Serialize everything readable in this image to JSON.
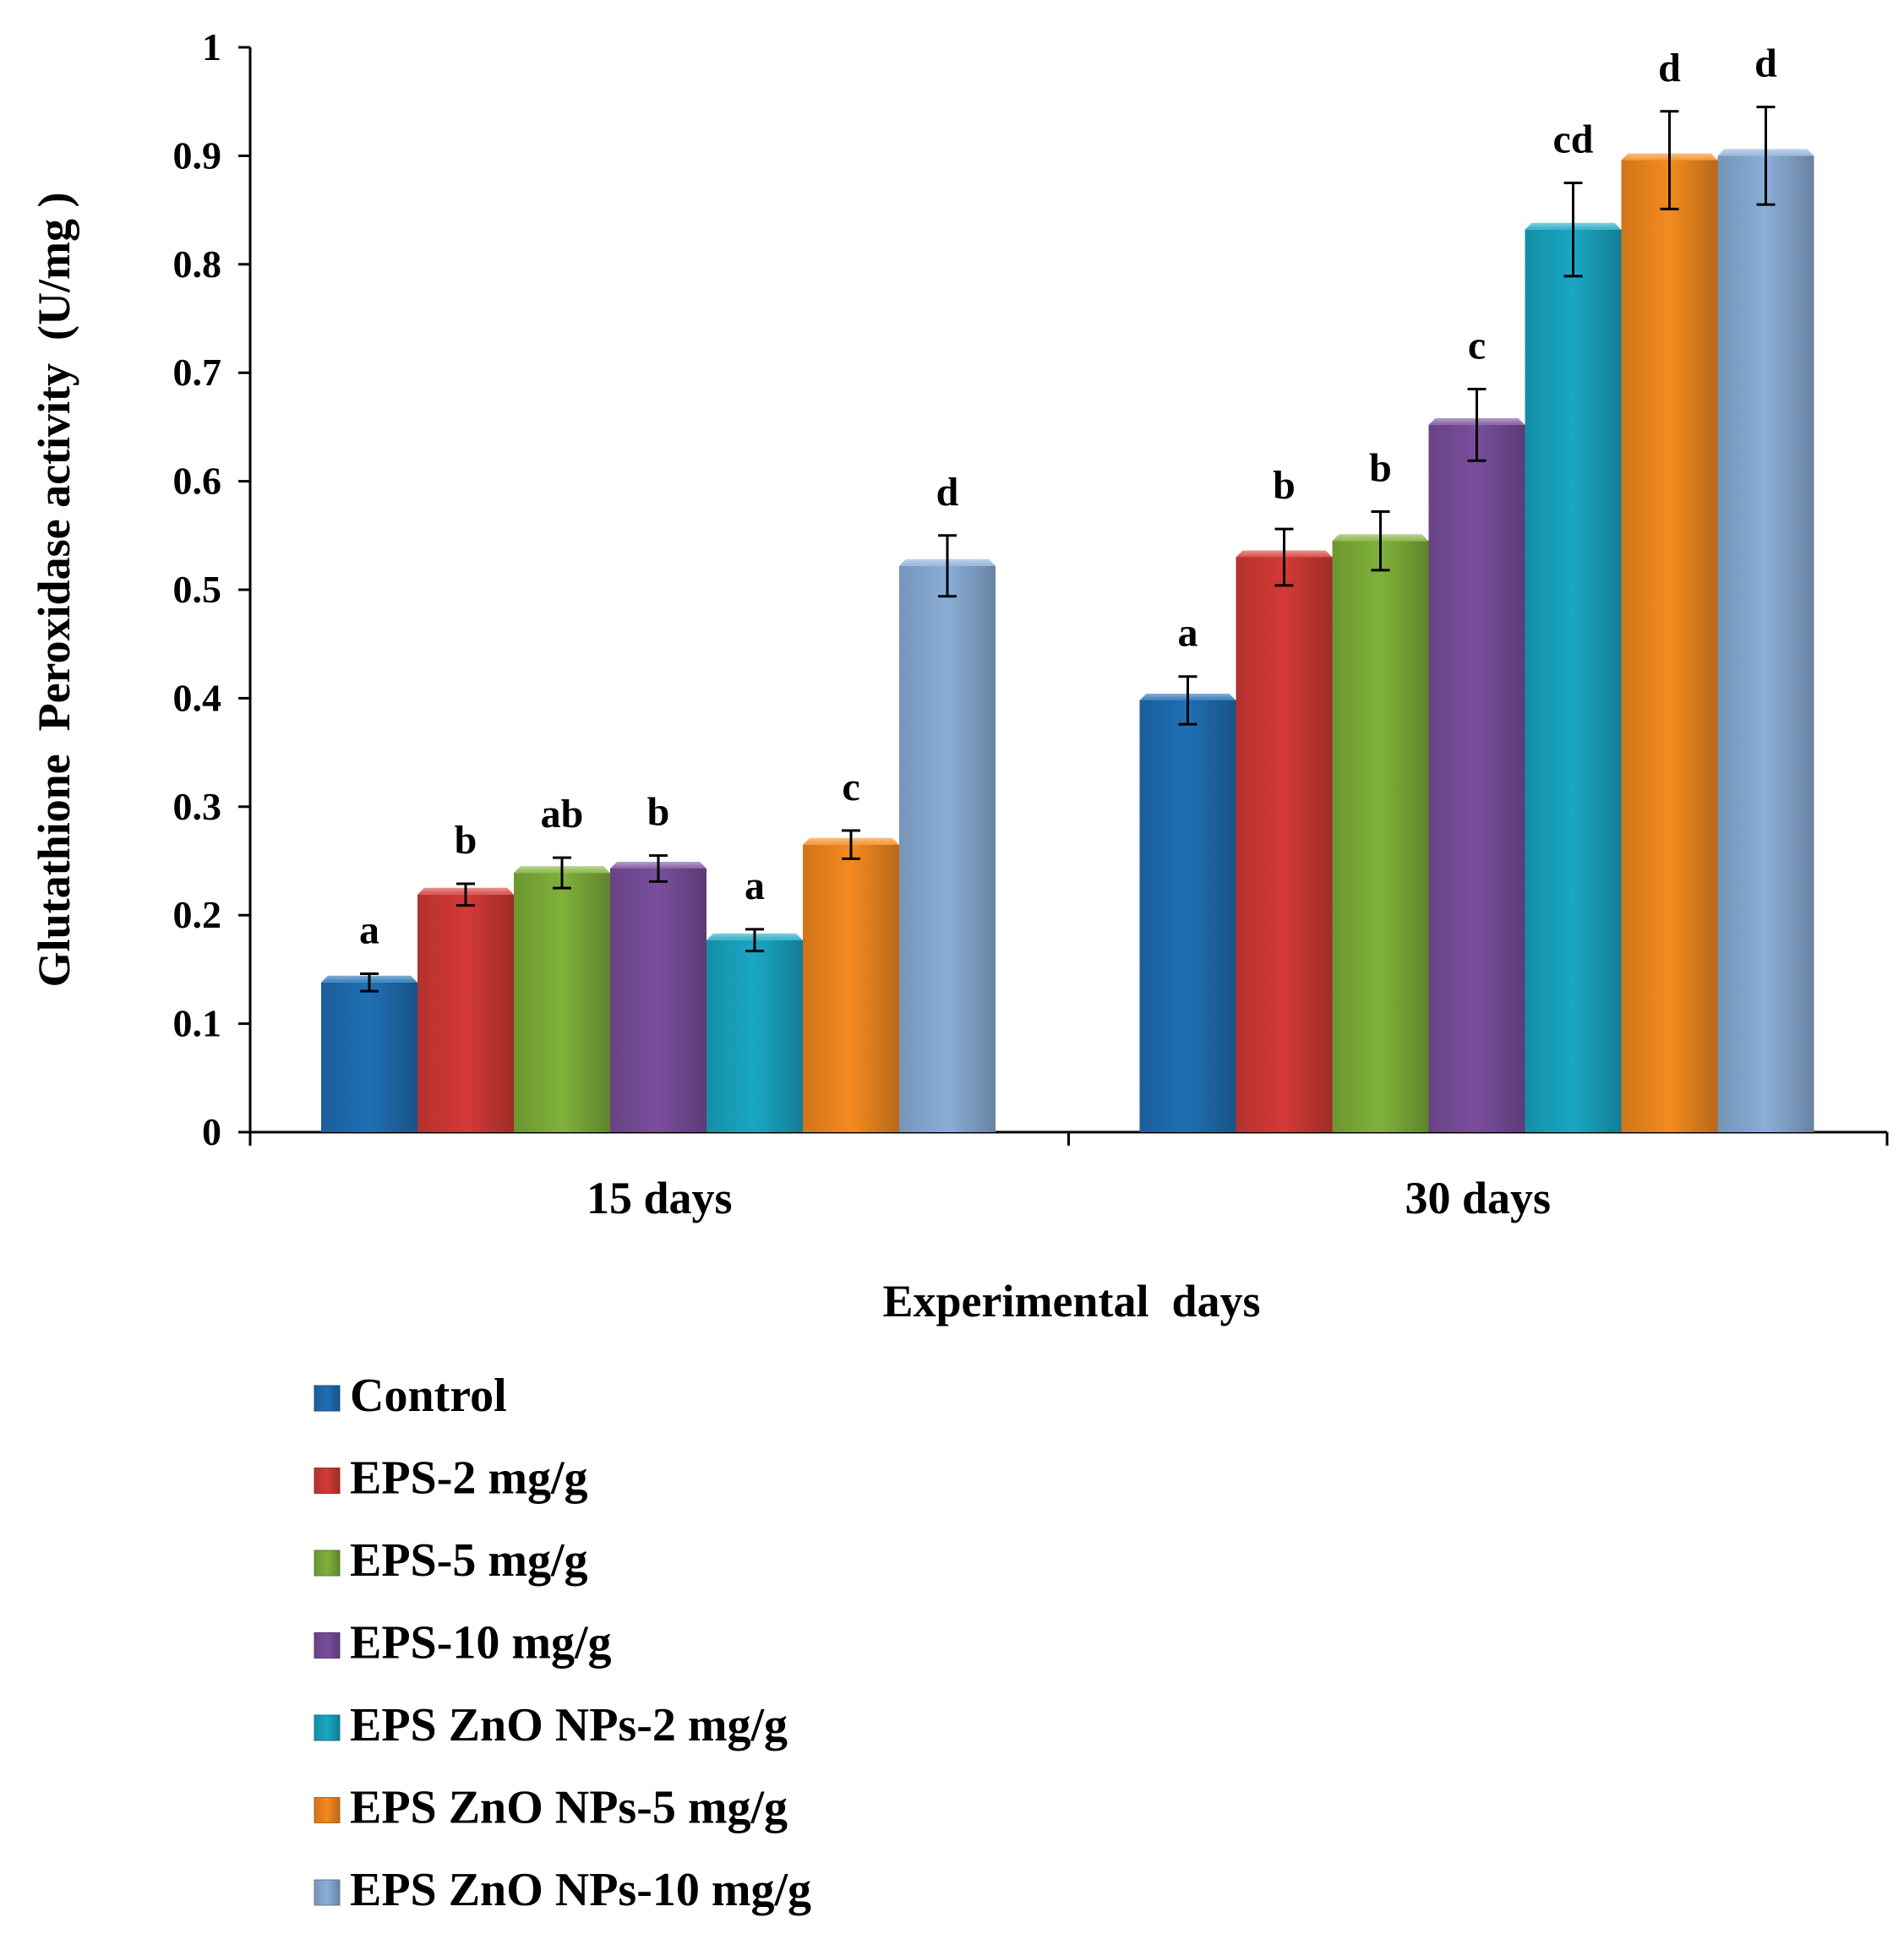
{
  "chart_data": {
    "type": "bar",
    "title": "",
    "xlabel": "Experimental  days",
    "ylabel": "Glutathione  Peroxidase activity  (U/mg )",
    "ylim": [
      0,
      1
    ],
    "yticks": [
      "0",
      "0.1",
      "0.2",
      "0.3",
      "0.4",
      "0.5",
      "0.6",
      "0.7",
      "0.8",
      "0.9",
      "1"
    ],
    "categories": [
      "15 days",
      "30 days"
    ],
    "grid": false,
    "legend_position": "bottom-left",
    "series": [
      {
        "name": "Control",
        "color": "#1f6fb4",
        "values": [
          0.138,
          0.398
        ],
        "errors": [
          0.008,
          0.022
        ],
        "letters": [
          "a",
          "a"
        ]
      },
      {
        "name": "EPS-2 mg/g",
        "color": "#d43a36",
        "values": [
          0.219,
          0.53
        ],
        "errors": [
          0.01,
          0.026
        ],
        "letters": [
          "b",
          "b"
        ]
      },
      {
        "name": "EPS-5 mg/g",
        "color": "#7fb13a",
        "values": [
          0.239,
          0.545
        ],
        "errors": [
          0.014,
          0.027
        ],
        "letters": [
          "ab",
          "b"
        ]
      },
      {
        "name": "EPS-10 mg/g",
        "color": "#7a4e9c",
        "values": [
          0.243,
          0.652
        ],
        "errors": [
          0.012,
          0.033
        ],
        "letters": [
          "b",
          "c"
        ]
      },
      {
        "name": "EPS ZnO NPs-2 mg/g",
        "color": "#19a7c4",
        "values": [
          0.177,
          0.832
        ],
        "errors": [
          0.01,
          0.043
        ],
        "letters": [
          "a",
          "cd"
        ]
      },
      {
        "name": "EPS ZnO NPs-5 mg/g",
        "color": "#f58a1f",
        "values": [
          0.265,
          0.896
        ],
        "errors": [
          0.013,
          0.045
        ],
        "letters": [
          "c",
          "d"
        ]
      },
      {
        "name": "EPS ZnO NPs-10 mg/g",
        "color": "#8aaed8",
        "values": [
          0.522,
          0.9
        ],
        "errors": [
          0.028,
          0.045
        ],
        "letters": [
          "d",
          "d"
        ]
      }
    ]
  }
}
